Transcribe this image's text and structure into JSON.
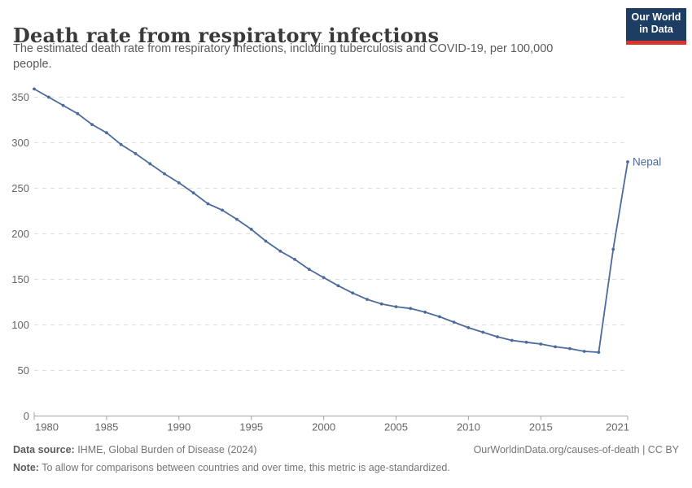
{
  "header": {
    "title": "Death rate from respiratory infections",
    "subtitle": "The estimated death rate from respiratory infections, including tuberculosis and COVID-19, per 100,000 people.",
    "logo_line1": "Our World",
    "logo_line2": "in Data"
  },
  "chart_data": {
    "type": "line",
    "title": "Death rate from respiratory infections",
    "xlabel": "",
    "ylabel": "",
    "xlim": [
      1980,
      2021
    ],
    "ylim": [
      0,
      360
    ],
    "x_ticks": [
      1980,
      1985,
      1990,
      1995,
      2000,
      2005,
      2010,
      2015,
      2021
    ],
    "y_ticks": [
      0,
      50,
      100,
      150,
      200,
      250,
      300,
      350
    ],
    "grid": "horizontal-dashed",
    "legend_position": "end-of-line-label",
    "series": [
      {
        "name": "Nepal",
        "color": "#4C6A9C",
        "x": [
          1980,
          1981,
          1982,
          1983,
          1984,
          1985,
          1986,
          1987,
          1988,
          1989,
          1990,
          1991,
          1992,
          1993,
          1994,
          1995,
          1996,
          1997,
          1998,
          1999,
          2000,
          2001,
          2002,
          2003,
          2004,
          2005,
          2006,
          2007,
          2008,
          2009,
          2010,
          2011,
          2012,
          2013,
          2014,
          2015,
          2016,
          2017,
          2018,
          2019,
          2020,
          2021
        ],
        "values": [
          359,
          350,
          341,
          332,
          320,
          311,
          298,
          288,
          277,
          266,
          256,
          245,
          233,
          226,
          216,
          205,
          192,
          181,
          172,
          161,
          152,
          143,
          135,
          128,
          123,
          120,
          118,
          114,
          109,
          103,
          97,
          92,
          87,
          83,
          81,
          79,
          76,
          74,
          71,
          70,
          183,
          279
        ]
      }
    ]
  },
  "footer": {
    "source_label": "Data source:",
    "source_text": " IHME, Global Burden of Disease (2024)",
    "rights": "OurWorldinData.org/causes-of-death | CC BY",
    "note_label": "Note:",
    "note_text": " To allow for comparisons between countries and over time, this metric is age-standardized."
  },
  "colors": {
    "series_blue": "#4C6A9C",
    "grid": "#dedede",
    "axis": "#a5a5a5",
    "tick_text": "#666666",
    "title_text": "#3a3a3a",
    "subtitle_text": "#5b5b5b",
    "logo_bg": "#1d3d63",
    "logo_red": "#d8352c"
  }
}
